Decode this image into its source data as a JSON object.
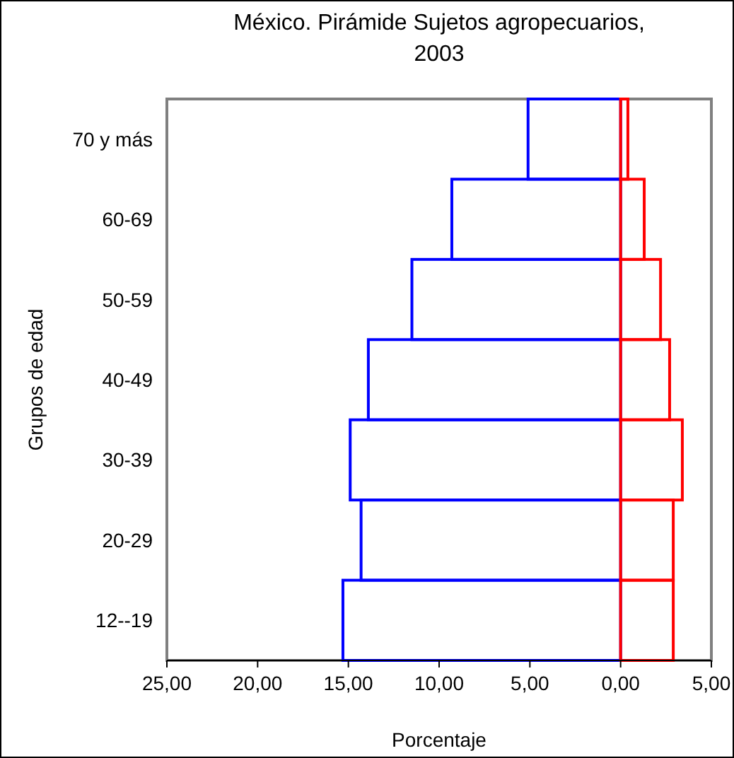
{
  "chart_data": {
    "type": "bar",
    "orientation": "horizontal",
    "title": "México. Pirámide Sujetos agropecuarios, 2003",
    "xlabel": "Porcentaje",
    "ylabel": "Grupos de edad",
    "categories": [
      "70 y más",
      "60-69",
      "50-59",
      "40-49",
      "30-39",
      "20-29",
      "12--19"
    ],
    "series": [
      {
        "color": "#0000ff",
        "values": [
          5.1,
          9.3,
          11.5,
          13.9,
          14.9,
          14.3,
          15.3
        ]
      },
      {
        "color": "#ff0000",
        "values": [
          -0.4,
          -1.3,
          -2.2,
          -2.7,
          -3.4,
          -2.9,
          -2.9
        ]
      }
    ],
    "xlim": [
      25,
      -5
    ],
    "xticks": [
      {
        "value": 25,
        "label": "25,00"
      },
      {
        "value": 20,
        "label": "20,00"
      },
      {
        "value": 15,
        "label": "15,00"
      },
      {
        "value": 10,
        "label": "10,00"
      },
      {
        "value": 5,
        "label": "5,00"
      },
      {
        "value": 0,
        "label": "0,00"
      },
      {
        "value": -5,
        "label": "5,00"
      }
    ],
    "grid": false
  }
}
